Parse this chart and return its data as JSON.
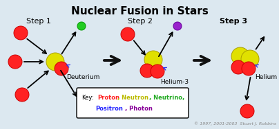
{
  "title": "Nuclear Fusion in Stars",
  "title_fontsize": 11,
  "title_fontweight": "bold",
  "bg_color": "#dce8f0",
  "step1_label": "Step 1",
  "step2_label": "Step 2",
  "step3_label": "Step 3",
  "deuterium_label": "Deuterium",
  "helium3_label": "Helium-3",
  "helium_label": "Helium",
  "proton_color": "#ff2222",
  "proton_edge": "#cc0000",
  "neutron_color": "#e0e000",
  "neutron_edge": "#aaa000",
  "neutrino_color": "#22cc22",
  "neutrino_edge": "#009900",
  "positron_color": "#3333ee",
  "positron_edge": "#0000aa",
  "photon_color": "#9922cc",
  "photon_edge": "#660099",
  "arrow_color": "#111111",
  "big_arrow_color": "#111111",
  "copyright": "© 1997, 2001-2003  Stuart J. Robbins",
  "key_proton_color": "#ff2222",
  "key_neutron_color": "#bbbb00",
  "key_neutrino_color": "#22aa22",
  "key_positron_color": "#2222ff",
  "key_photon_color": "#880099"
}
